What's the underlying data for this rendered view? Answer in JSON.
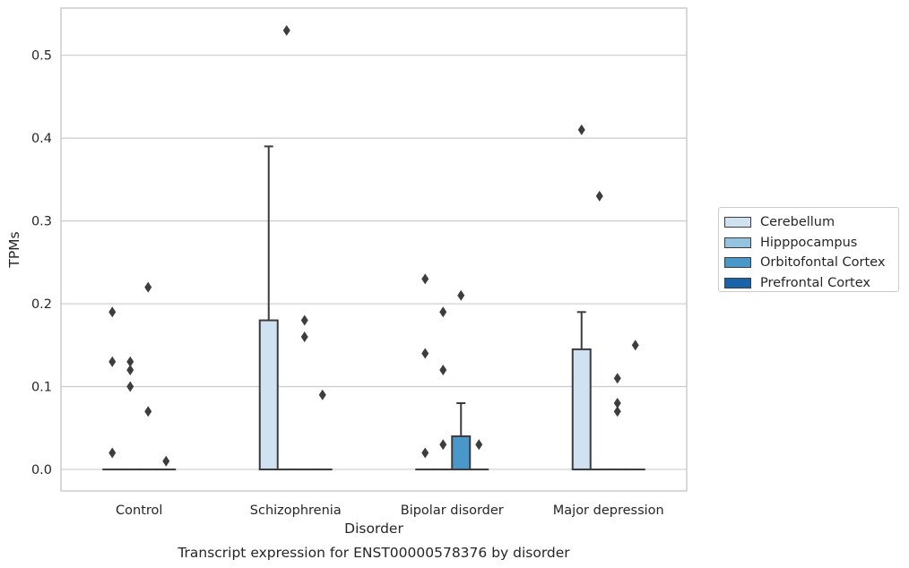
{
  "chart_data": {
    "type": "box",
    "xlabel": "Disorder",
    "ylabel": "TPMs",
    "caption": "Transcript expression for ENST00000578376 by disorder",
    "categories": [
      "Control",
      "Schizophrenia",
      "Bipolar disorder",
      "Major depression"
    ],
    "y_ticks": [
      "0.0",
      "0.1",
      "0.2",
      "0.3",
      "0.4",
      "0.5"
    ],
    "ylim": [
      -0.026,
      0.557
    ],
    "grid": "horizontal",
    "legend_position": "right",
    "series": [
      {
        "name": "Cerebellum",
        "color": "#d0e1f2",
        "boxes": [
          {
            "category": "Control",
            "whisker_low": 0,
            "q1": 0,
            "median": 0,
            "q3": 0,
            "whisker_high": 0,
            "outliers": [
              0.02,
              0.13,
              0.19
            ]
          },
          {
            "category": "Schizophrenia",
            "whisker_low": 0,
            "q1": 0,
            "median": 0,
            "q3": 0.18,
            "whisker_high": 0.39,
            "outliers": []
          },
          {
            "category": "Bipolar disorder",
            "whisker_low": 0,
            "q1": 0,
            "median": 0,
            "q3": 0,
            "whisker_high": 0,
            "outliers": [
              0.02,
              0.14,
              0.23
            ]
          },
          {
            "category": "Major depression",
            "whisker_low": 0,
            "q1": 0,
            "median": 0,
            "q3": 0.145,
            "whisker_high": 0.19,
            "outliers": [
              0.41
            ]
          }
        ]
      },
      {
        "name": "Hipppocampus",
        "color": "#94c4df",
        "boxes": [
          {
            "category": "Control",
            "whisker_low": 0,
            "q1": 0,
            "median": 0,
            "q3": 0,
            "whisker_high": 0,
            "outliers": [
              0.1,
              0.12,
              0.13
            ]
          },
          {
            "category": "Schizophrenia",
            "whisker_low": 0,
            "q1": 0,
            "median": 0,
            "q3": 0,
            "whisker_high": 0,
            "outliers": [
              0.53
            ]
          },
          {
            "category": "Bipolar disorder",
            "whisker_low": 0,
            "q1": 0,
            "median": 0,
            "q3": 0,
            "whisker_high": 0,
            "outliers": [
              0.03,
              0.12,
              0.19
            ]
          },
          {
            "category": "Major depression",
            "whisker_low": 0,
            "q1": 0,
            "median": 0,
            "q3": 0,
            "whisker_high": 0,
            "outliers": [
              0.33
            ]
          }
        ]
      },
      {
        "name": "Orbitofontal Cortex",
        "color": "#4a98c9",
        "boxes": [
          {
            "category": "Control",
            "whisker_low": 0,
            "q1": 0,
            "median": 0,
            "q3": 0,
            "whisker_high": 0,
            "outliers": [
              0.07,
              0.22
            ]
          },
          {
            "category": "Schizophrenia",
            "whisker_low": 0,
            "q1": 0,
            "median": 0,
            "q3": 0,
            "whisker_high": 0,
            "outliers": [
              0.16,
              0.18
            ]
          },
          {
            "category": "Bipolar disorder",
            "whisker_low": 0,
            "q1": 0,
            "median": 0,
            "q3": 0.04,
            "whisker_high": 0.08,
            "outliers": [
              0.21
            ]
          },
          {
            "category": "Major depression",
            "whisker_low": 0,
            "q1": 0,
            "median": 0,
            "q3": 0,
            "whisker_high": 0,
            "outliers": [
              0.07,
              0.08,
              0.11
            ]
          }
        ]
      },
      {
        "name": "Prefrontal Cortex",
        "color": "#1764ab",
        "boxes": [
          {
            "category": "Control",
            "whisker_low": 0,
            "q1": 0,
            "median": 0,
            "q3": 0,
            "whisker_high": 0,
            "outliers": [
              0.01
            ]
          },
          {
            "category": "Schizophrenia",
            "whisker_low": 0,
            "q1": 0,
            "median": 0,
            "q3": 0,
            "whisker_high": 0,
            "outliers": [
              0.09
            ]
          },
          {
            "category": "Bipolar disorder",
            "whisker_low": 0,
            "q1": 0,
            "median": 0,
            "q3": 0,
            "whisker_high": 0,
            "outliers": [
              0.03
            ]
          },
          {
            "category": "Major depression",
            "whisker_low": 0,
            "q1": 0,
            "median": 0,
            "q3": 0,
            "whisker_high": 0,
            "outliers": [
              0.15
            ]
          }
        ]
      }
    ]
  }
}
